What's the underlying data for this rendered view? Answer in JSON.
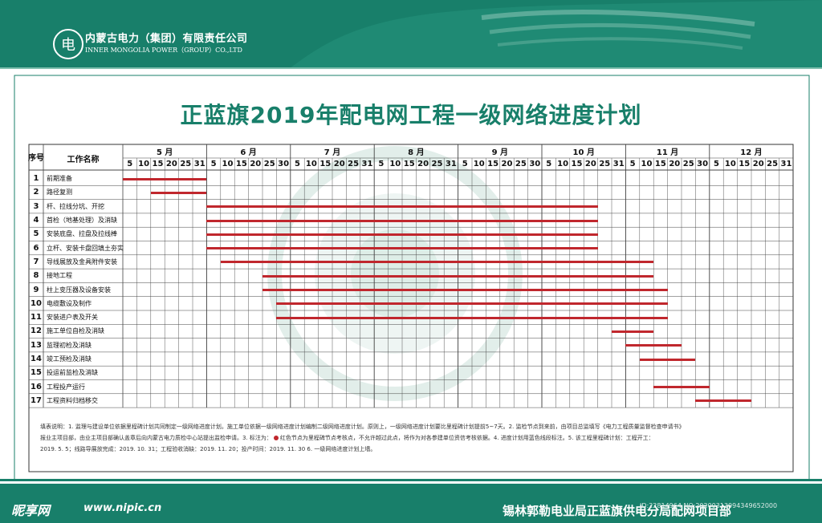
{
  "header": {
    "logo_glyph": "电",
    "company_cn": "内蒙古电力（集团）有限责任公司",
    "company_en": "INNER MONGOLIA POWER（GROUP）CO.,LTD"
  },
  "title": "正蓝旗2019年配电网工程一级网络进度计划",
  "table": {
    "col_index": "序号",
    "col_name": "工作名称",
    "months": [
      {
        "label": "5 月",
        "days": [
          "5",
          "10",
          "15",
          "20",
          "25",
          "31"
        ]
      },
      {
        "label": "6 月",
        "days": [
          "5",
          "10",
          "15",
          "20",
          "25",
          "30"
        ]
      },
      {
        "label": "7 月",
        "days": [
          "5",
          "10",
          "15",
          "20",
          "25",
          "31"
        ]
      },
      {
        "label": "8 月",
        "days": [
          "5",
          "10",
          "15",
          "20",
          "25",
          "31"
        ]
      },
      {
        "label": "9 月",
        "days": [
          "5",
          "10",
          "15",
          "20",
          "25",
          "30"
        ]
      },
      {
        "label": "10 月",
        "days": [
          "5",
          "10",
          "15",
          "20",
          "25",
          "31"
        ]
      },
      {
        "label": "11 月",
        "days": [
          "5",
          "10",
          "15",
          "20",
          "25",
          "30"
        ]
      },
      {
        "label": "12 月",
        "days": [
          "5",
          "10",
          "15",
          "20",
          "25",
          "31"
        ]
      }
    ],
    "tasks": [
      {
        "no": "1",
        "name": "前期准备",
        "start": 0,
        "end": 6
      },
      {
        "no": "2",
        "name": "路径复测",
        "start": 2,
        "end": 6
      },
      {
        "no": "3",
        "name": "杆、拉线分坑、开挖",
        "start": 6,
        "end": 34
      },
      {
        "no": "4",
        "name": "首检（地基处理）及消缺",
        "start": 6,
        "end": 34
      },
      {
        "no": "5",
        "name": "安装底盘、拉盘及拉线棒",
        "start": 6,
        "end": 34
      },
      {
        "no": "6",
        "name": "立杆、安装卡盘回填土夯实",
        "start": 6,
        "end": 34
      },
      {
        "no": "7",
        "name": "导线展放及金具附件安装",
        "start": 7,
        "end": 38
      },
      {
        "no": "8",
        "name": "接地工程",
        "start": 10,
        "end": 38
      },
      {
        "no": "9",
        "name": "柱上变压器及设备安装",
        "start": 10,
        "end": 39
      },
      {
        "no": "10",
        "name": "电缆敷设及制作",
        "start": 11,
        "end": 39
      },
      {
        "no": "11",
        "name": "安装进户表及开关",
        "start": 11,
        "end": 39
      },
      {
        "no": "12",
        "name": "施工单位自检及消缺",
        "start": 35,
        "end": 38
      },
      {
        "no": "13",
        "name": "监理初检及消缺",
        "start": 36,
        "end": 40
      },
      {
        "no": "14",
        "name": "竣工预检及消缺",
        "start": 37,
        "end": 41
      },
      {
        "no": "15",
        "name": "投运前监检及消缺",
        "start": null,
        "end": null
      },
      {
        "no": "16",
        "name": "工程投产运行",
        "start": 38,
        "end": 42
      },
      {
        "no": "17",
        "name": "工程资料归档移交",
        "start": 41,
        "end": 45
      }
    ]
  },
  "notes": {
    "line1": "填表说明：1. 监理与建设单位依据里程碑计划共同制定一级网络进度计划。施工单位依据一级网络进度计划编制二级网络进度计划。原则上，一级网络进度计划要比里程碑计划提前5~7天。2. 监检节点到来前，由项目总监填写《电力工程质量监督检查申请书》",
    "line2a": "报业主项目部，由业主项目部确认盖章后向内蒙古电力质检中心站提出监检申请。3. 标注为：",
    "line2b": "红色节点为里程碑节点考核点，不允许越过此点，将作为对各参建单位资信考核依据。4. 进度计划用蓝色线段标注。5. 该工程里程碑计划：工程开工：",
    "line3": "2019. 5. 5；线路导展放完成：2019. 10. 31；工程验收消缺：2019. 11. 20；投产时间：2019. 11. 30    6. 一级网络进度计划上墙。"
  },
  "footer": {
    "site_logo": "昵享网",
    "site_url": "www.nipic.cn",
    "department": "锡林郭勒电业局正蓝旗供电分局配网项目部",
    "image_id": "ID:22814964 NO:20200313094349652000"
  },
  "colors": {
    "brand": "#187f6a",
    "bar": "#c0272d"
  }
}
